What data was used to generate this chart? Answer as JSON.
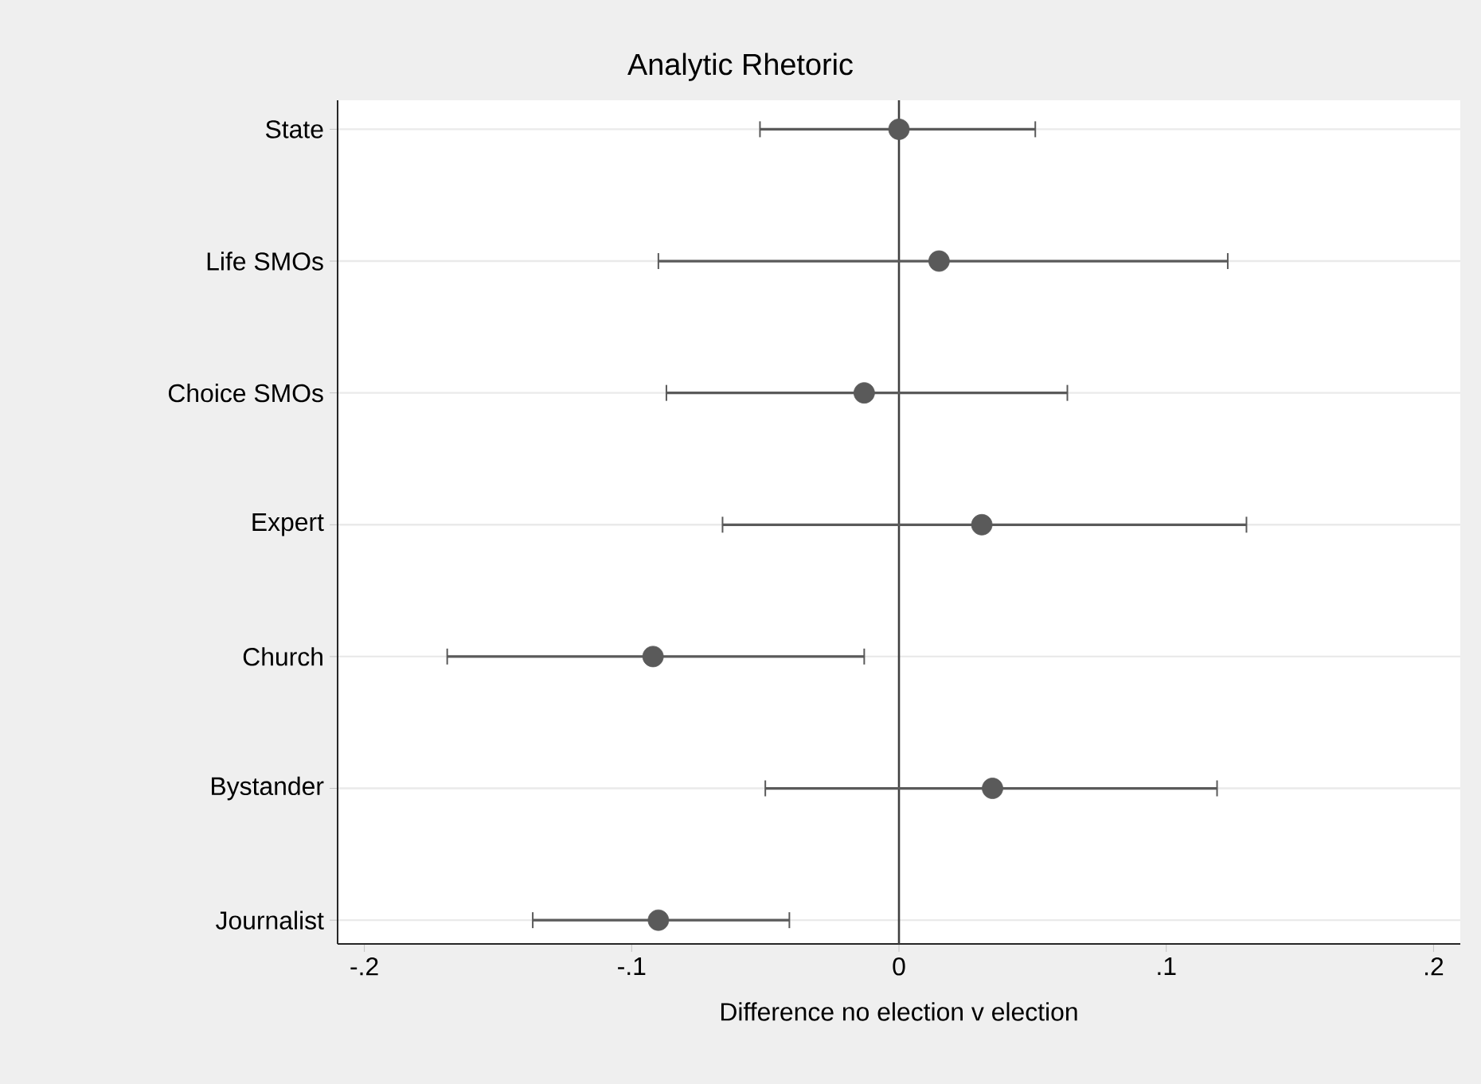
{
  "chart_data": {
    "type": "scatter",
    "orientation": "horizontal",
    "title": "Analytic Rhetoric",
    "xlabel": "Difference no election v election",
    "categories": [
      "State",
      "Life SMOs",
      "Choice SMOs",
      "Expert",
      "Church",
      "Bystander",
      "Journalist"
    ],
    "values": [
      0.0,
      0.015,
      -0.013,
      0.031,
      -0.092,
      0.035,
      -0.09
    ],
    "errors": [
      [
        -0.052,
        0.051
      ],
      [
        -0.09,
        0.123
      ],
      [
        -0.087,
        0.063
      ],
      [
        -0.066,
        0.13
      ],
      [
        -0.169,
        -0.013
      ],
      [
        -0.05,
        0.119
      ],
      [
        -0.137,
        -0.041
      ]
    ],
    "color": "#5a5a5a",
    "xlim": [
      -0.21,
      0.21
    ],
    "xticks": [
      {
        "value": -0.2,
        "label": "-.2"
      },
      {
        "value": -0.1,
        "label": "-.1"
      },
      0,
      {
        "value": 0.1,
        "label": ".1"
      },
      {
        "value": 0.2,
        "label": ".2"
      }
    ],
    "ref_lines": [
      {
        "axis": "x",
        "value": 0,
        "color": "#404040"
      }
    ],
    "grid": "y"
  }
}
